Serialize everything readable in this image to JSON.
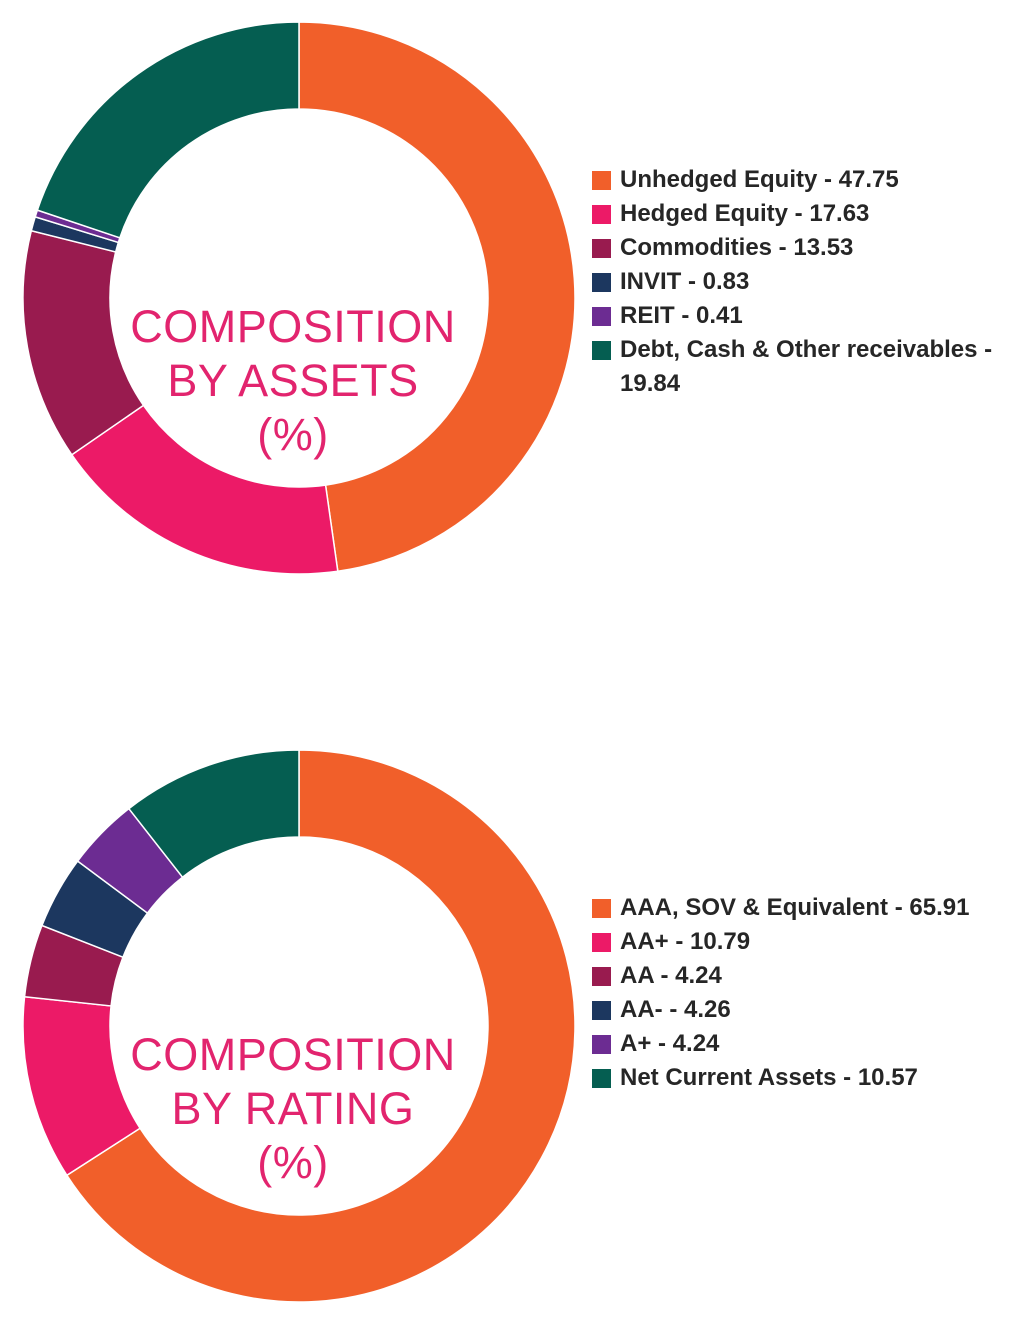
{
  "chart_data": [
    {
      "type": "pie",
      "title_lines": [
        "COMPOSITION",
        "BY ASSETS",
        "(%)"
      ],
      "slices": [
        {
          "label": "Unhedged Equity - 47.75",
          "value": 47.75,
          "color": "#f15f2a"
        },
        {
          "label": "Hedged Equity - 17.63",
          "value": 17.63,
          "color": "#ec1a67"
        },
        {
          "label": "Commodities - 13.53",
          "value": 13.53,
          "color": "#991b4f"
        },
        {
          "label": "INVIT - 0.83",
          "value": 0.83,
          "color": "#1c375f"
        },
        {
          "label": "REIT - 0.41",
          "value": 0.41,
          "color": "#6c2c92"
        },
        {
          "label": "Debt, Cash & Other receivables - 19.84",
          "value": 19.84,
          "color": "#055e51"
        }
      ]
    },
    {
      "type": "pie",
      "title_lines": [
        "COMPOSITION",
        "BY RATING",
        "(%)"
      ],
      "slices": [
        {
          "label": "AAA, SOV & Equivalent - 65.91",
          "value": 65.91,
          "color": "#f15f2a"
        },
        {
          "label": "AA+ - 10.79",
          "value": 10.79,
          "color": "#ec1a67"
        },
        {
          "label": "AA - 4.24",
          "value": 4.24,
          "color": "#991b4f"
        },
        {
          "label": "AA- - 4.26",
          "value": 4.26,
          "color": "#1c375f"
        },
        {
          "label": "A+ - 4.24",
          "value": 4.24,
          "color": "#6c2c92"
        },
        {
          "label": "Net Current Assets - 10.57",
          "value": 10.57,
          "color": "#055e51"
        }
      ]
    }
  ]
}
